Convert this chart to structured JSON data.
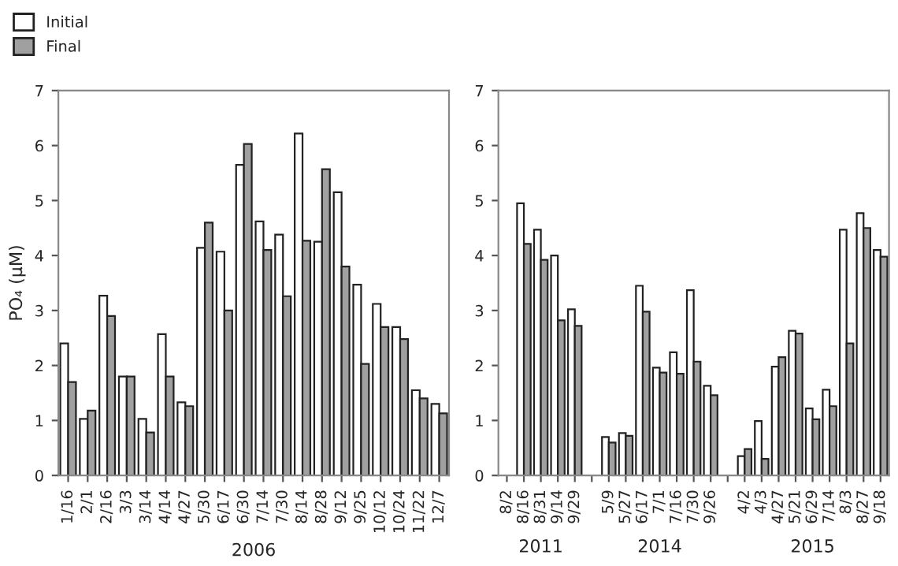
{
  "chart_data": [
    {
      "type": "bar",
      "ylabel": "PO₄ (μM)",
      "xlabel": "2006",
      "legend": "top left",
      "grid": false,
      "ylim": [
        0,
        7
      ],
      "yticks": [
        0,
        1,
        2,
        3,
        4,
        5,
        6,
        7
      ],
      "categories": [
        "1/16",
        "2/1",
        "2/16",
        "3/3",
        "3/14",
        "4/14",
        "4/27",
        "5/30",
        "6/17",
        "6/30",
        "7/14",
        "7/30",
        "8/14",
        "8/28",
        "9/12",
        "9/25",
        "10/12",
        "10/24",
        "11/22",
        "12/7"
      ],
      "series": [
        {
          "name": "Initial",
          "color": "#ffffff",
          "values": [
            2.4,
            1.03,
            3.27,
            1.8,
            1.03,
            2.57,
            1.33,
            4.14,
            4.07,
            5.65,
            4.62,
            4.38,
            6.22,
            4.25,
            5.15,
            3.47,
            3.12,
            2.7,
            1.55,
            1.3
          ]
        },
        {
          "name": "Final",
          "color": "#a0a0a0",
          "values": [
            1.7,
            1.18,
            2.9,
            1.8,
            0.78,
            1.8,
            1.26,
            4.6,
            3.0,
            6.03,
            4.1,
            3.26,
            4.27,
            5.57,
            3.8,
            2.03,
            2.7,
            2.48,
            1.4,
            1.13
          ]
        }
      ]
    },
    {
      "type": "bar",
      "ylim": [
        0,
        7
      ],
      "yticks": [
        0,
        1,
        2,
        3,
        4,
        5,
        6,
        7
      ],
      "grid": false,
      "annotations": [
        "2011",
        "2014",
        "2015"
      ],
      "categories": [
        "8/2",
        "8/16",
        "8/31",
        "9/14",
        "9/29",
        null,
        "5/9",
        "5/27",
        "6/17",
        "7/1",
        "7/16",
        "7/30",
        "9/26",
        null,
        "4/2",
        "4/3",
        "4/27",
        "5/21",
        "6/29",
        "7/14",
        "8/3",
        "8/27",
        "9/18"
      ],
      "series": [
        {
          "color": "#ffffff",
          "values": [
            null,
            4.95,
            4.47,
            4.0,
            3.02,
            null,
            0.7,
            0.77,
            3.45,
            1.96,
            2.24,
            3.37,
            1.63,
            null,
            0.35,
            0.99,
            1.98,
            2.63,
            1.22,
            1.56,
            4.47,
            4.77,
            4.1
          ]
        },
        {
          "color": "#a0a0a0",
          "values": [
            null,
            4.21,
            3.92,
            2.82,
            2.72,
            null,
            0.6,
            0.72,
            2.98,
            1.87,
            1.85,
            2.07,
            1.46,
            null,
            0.48,
            0.3,
            2.15,
            2.58,
            1.02,
            1.26,
            2.4,
            4.5,
            3.98
          ]
        }
      ]
    }
  ]
}
